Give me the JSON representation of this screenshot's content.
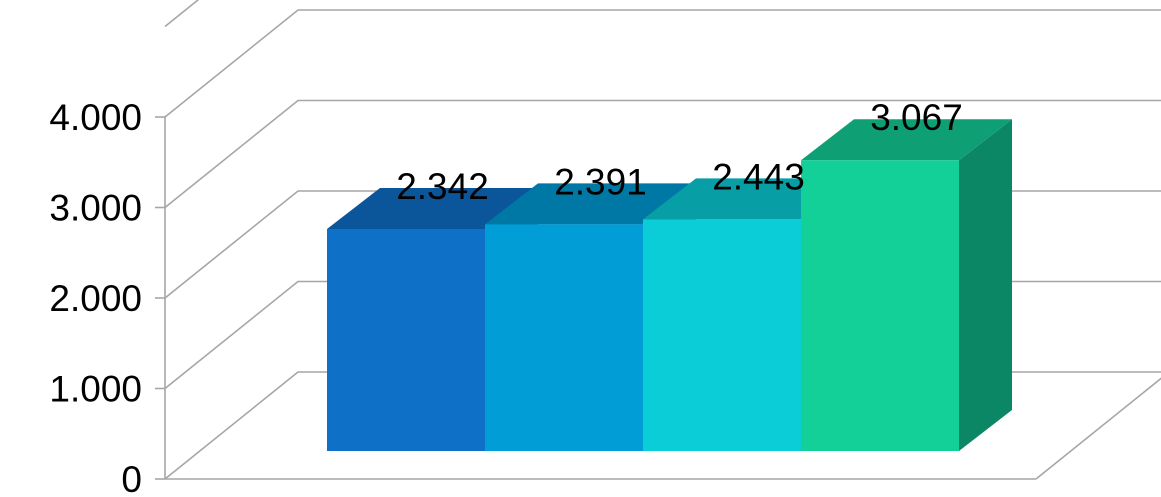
{
  "chart_data": {
    "type": "bar",
    "style": "3d-column",
    "categories": [
      "",
      "",
      "",
      ""
    ],
    "values": [
      2342,
      2391,
      2443,
      3067
    ],
    "data_labels": [
      "2.342",
      "2.391",
      "2.443",
      "3.067"
    ],
    "yticks": [
      {
        "value": 0,
        "label": "0"
      },
      {
        "value": 1000,
        "label": "1.000"
      },
      {
        "value": 2000,
        "label": "2.000"
      },
      {
        "value": 3000,
        "label": "3.000"
      },
      {
        "value": 4000,
        "label": "4.000"
      }
    ],
    "ylim": [
      0,
      5000
    ],
    "grid": true,
    "legend": "none",
    "colors": {
      "bars": [
        {
          "front": "#0f70c8",
          "top": "#0b569b",
          "side": "#0a4f8f"
        },
        {
          "front": "#009dd6",
          "top": "#0078a6",
          "side": "#006f99"
        },
        {
          "front": "#0acdd8",
          "top": "#089ea6",
          "side": "#07929a"
        },
        {
          "front": "#12d097",
          "top": "#0e9f74",
          "side": "#0c8765"
        }
      ],
      "grid": "#a6a6a6"
    }
  }
}
